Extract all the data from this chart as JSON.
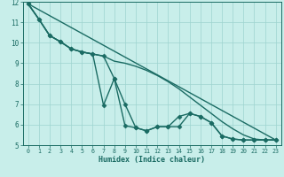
{
  "xlabel": "Humidex (Indice chaleur)",
  "xlim": [
    -0.5,
    23.5
  ],
  "ylim": [
    5,
    12
  ],
  "yticks": [
    5,
    6,
    7,
    8,
    9,
    10,
    11,
    12
  ],
  "xticks": [
    0,
    1,
    2,
    3,
    4,
    5,
    6,
    7,
    8,
    9,
    10,
    11,
    12,
    13,
    14,
    15,
    16,
    17,
    18,
    19,
    20,
    21,
    22,
    23
  ],
  "background_color": "#c8eeea",
  "grid_color": "#9ed4cf",
  "line_color": "#1a6b63",
  "series": [
    {
      "x": [
        0,
        1,
        2,
        3,
        4,
        5,
        6,
        7,
        8,
        9,
        10,
        11,
        12,
        13,
        14,
        15,
        16,
        17,
        18,
        19,
        20,
        21,
        22,
        23
      ],
      "y": [
        11.9,
        11.15,
        10.35,
        10.05,
        9.7,
        9.55,
        9.45,
        6.95,
        8.25,
        5.95,
        5.85,
        5.7,
        5.9,
        5.9,
        6.4,
        6.55,
        6.4,
        6.1,
        5.45,
        5.3,
        5.25,
        5.25,
        5.25,
        5.25
      ],
      "marker": "D",
      "markersize": 2.5,
      "linewidth": 1.0
    },
    {
      "x": [
        0,
        1,
        2,
        3,
        4,
        5,
        6,
        7,
        8,
        9,
        10,
        11,
        12,
        13,
        14,
        15,
        16,
        17,
        18,
        19,
        20,
        21,
        22,
        23
      ],
      "y": [
        11.9,
        11.15,
        10.35,
        10.05,
        9.7,
        9.55,
        9.45,
        9.35,
        8.25,
        7.0,
        5.85,
        5.7,
        5.9,
        5.9,
        5.9,
        6.55,
        6.4,
        6.1,
        5.45,
        5.3,
        5.25,
        5.25,
        5.25,
        5.25
      ],
      "marker": "D",
      "markersize": 2.5,
      "linewidth": 1.0
    },
    {
      "x": [
        0,
        1,
        2,
        3,
        4,
        5,
        6,
        7,
        8,
        9,
        10,
        11,
        12,
        13,
        14,
        15,
        16,
        17,
        18,
        19,
        20,
        21,
        22,
        23
      ],
      "y": [
        11.9,
        11.15,
        10.35,
        10.05,
        9.7,
        9.55,
        9.45,
        9.35,
        9.1,
        9.0,
        8.85,
        8.65,
        8.4,
        8.1,
        7.75,
        7.35,
        6.95,
        6.55,
        6.15,
        5.8,
        5.5,
        5.3,
        5.25,
        5.25
      ],
      "marker": null,
      "markersize": 0,
      "linewidth": 1.0
    },
    {
      "x": [
        0,
        23
      ],
      "y": [
        11.9,
        5.25
      ],
      "marker": null,
      "markersize": 0,
      "linewidth": 1.0
    }
  ]
}
